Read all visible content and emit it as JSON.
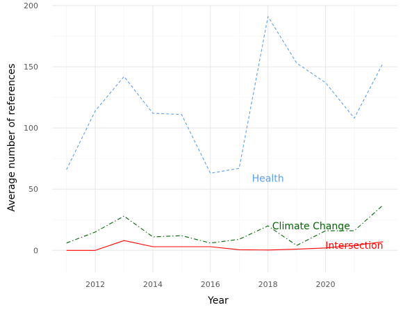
{
  "chart_data": {
    "type": "line",
    "xlabel": "Year",
    "ylabel": "Average number of references",
    "xlim": [
      2010.5,
      2022.5
    ],
    "ylim": [
      -18,
      200
    ],
    "x_ticks": [
      2012,
      2014,
      2016,
      2018,
      2020
    ],
    "y_ticks": [
      0,
      50,
      100,
      150,
      200
    ],
    "grid": true,
    "legend": "none",
    "x": [
      2011,
      2012,
      2013,
      2014,
      2015,
      2016,
      2017,
      2018,
      2019,
      2020,
      2021,
      2022
    ],
    "series": [
      {
        "name": "Health",
        "color": "#5b9ee8",
        "dash": "dashed",
        "values": [
          66,
          114,
          142,
          112,
          111,
          63,
          67,
          191,
          153,
          137,
          108,
          153
        ],
        "label_at": [
          2018.0,
          59
        ]
      },
      {
        "name": "Climate Change",
        "color": "#006400",
        "dash": "dashdot",
        "values": [
          6,
          15,
          28,
          11,
          12,
          6,
          9,
          20,
          4,
          16,
          16,
          37
        ],
        "label_at": [
          2019.5,
          20
        ]
      },
      {
        "name": "Intersection",
        "color": "#ff0000",
        "dash": "solid",
        "values": [
          0,
          0,
          8,
          3,
          3,
          3,
          0.5,
          0.3,
          1,
          2,
          4,
          7
        ],
        "label_at": [
          2021.0,
          4
        ]
      }
    ]
  }
}
